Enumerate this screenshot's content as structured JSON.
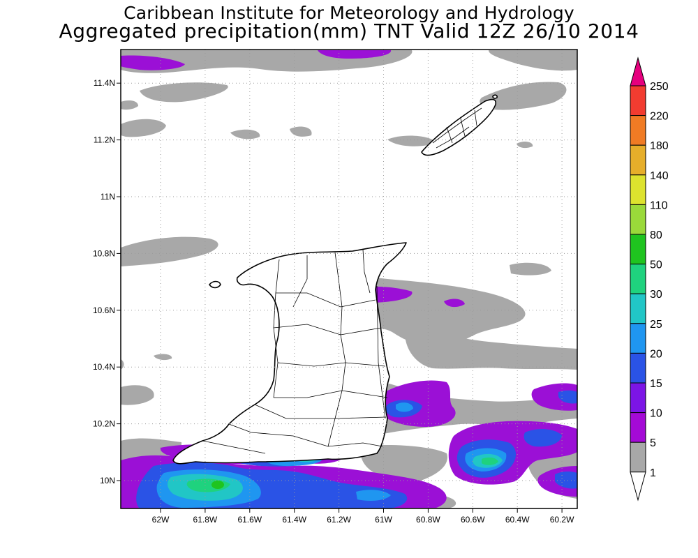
{
  "title_line1": "Caribbean Institute for Meteorology and Hydrology",
  "title_line2": "Aggregated precipitation(mm) TNT Valid 12Z 26/10 2014",
  "map": {
    "lon_range": [
      -62.2,
      -60.2
    ],
    "lat_range": [
      9.9,
      11.5
    ],
    "lat_ticks": [
      {
        "value": 11.4,
        "label": "11.4N"
      },
      {
        "value": 11.2,
        "label": "11.2N"
      },
      {
        "value": 11.0,
        "label": "11N"
      },
      {
        "value": 10.8,
        "label": "10.8N"
      },
      {
        "value": 10.6,
        "label": "10.6N"
      },
      {
        "value": 10.4,
        "label": "10.4N"
      },
      {
        "value": 10.2,
        "label": "10.2N"
      },
      {
        "value": 10.0,
        "label": "10N"
      }
    ],
    "lon_ticks": [
      {
        "value": -62.0,
        "label": "62W"
      },
      {
        "value": -61.8,
        "label": "61.8W"
      },
      {
        "value": -61.6,
        "label": "61.6W"
      },
      {
        "value": -61.4,
        "label": "61.4W"
      },
      {
        "value": -61.2,
        "label": "61.2W"
      },
      {
        "value": -61.0,
        "label": "61W"
      },
      {
        "value": -60.8,
        "label": "60.8W"
      },
      {
        "value": -60.6,
        "label": "60.6W"
      },
      {
        "value": -60.4,
        "label": "60.4W"
      },
      {
        "value": -60.2,
        "label": "60.2W"
      }
    ],
    "grid": "dotted"
  },
  "legend": {
    "levels": [
      {
        "label": "250",
        "color": "#e6007e"
      },
      {
        "label": "220",
        "color": "#f23c30"
      },
      {
        "label": "180",
        "color": "#f07b24"
      },
      {
        "label": "140",
        "color": "#e6ae2a"
      },
      {
        "label": "110",
        "color": "#dde22e"
      },
      {
        "label": "80",
        "color": "#9ad93a"
      },
      {
        "label": "50",
        "color": "#1fc41f"
      },
      {
        "label": "30",
        "color": "#1fd27e"
      },
      {
        "label": "25",
        "color": "#21c6c6"
      },
      {
        "label": "20",
        "color": "#1f96f0"
      },
      {
        "label": "15",
        "color": "#2a53e6"
      },
      {
        "label": "10",
        "color": "#7c15e6"
      },
      {
        "label": "5",
        "color": "#a40ad6"
      },
      {
        "label": "1",
        "color": "#a8a8a8"
      }
    ],
    "bottom_color": "#ffffff"
  },
  "colors": {
    "gray": "#a8a8a8",
    "purple": "#9b10d6",
    "violet": "#7c15e6",
    "blue": "#2a53e6",
    "lightblue": "#1f96f0",
    "cyan": "#21c6c6",
    "teal": "#1fd27e",
    "green": "#1fc41f"
  }
}
